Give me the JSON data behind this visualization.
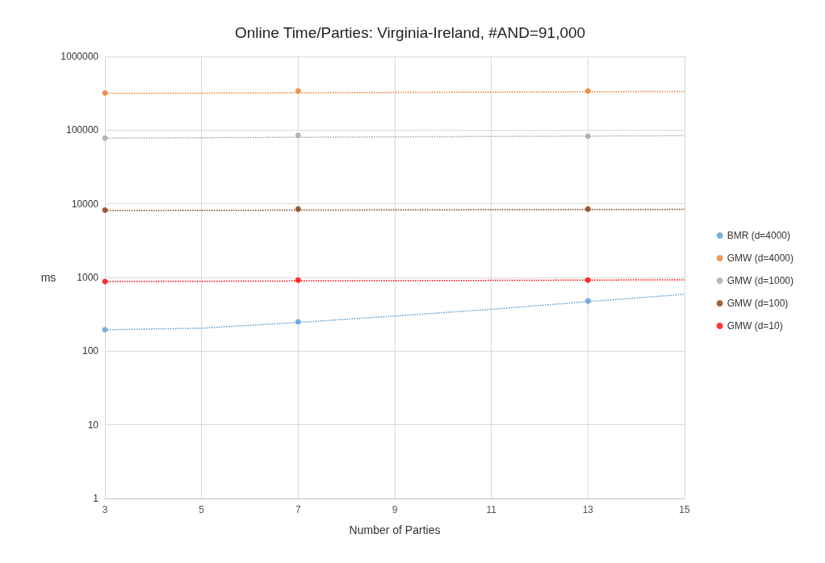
{
  "chart_data": {
    "type": "scatter",
    "title": "Online Time/Parties: Virginia-Ireland, #AND=91,000",
    "xlabel": "Number of Parties",
    "ylabel": "ms",
    "log": "y",
    "grid": true,
    "legend": "right",
    "xlim": [
      3,
      15
    ],
    "xticks": [
      3,
      5,
      7,
      9,
      11,
      13,
      15
    ],
    "ylim": [
      1,
      1000000
    ],
    "yticks": [
      1,
      10,
      100,
      1000,
      10000,
      100000,
      1000000
    ],
    "series": [
      {
        "name": "BMR (d=4000)",
        "marker": "circle",
        "color": "#5b9bd5",
        "x": [
          3,
          7,
          13
        ],
        "values": [
          195,
          250,
          480
        ]
      },
      {
        "name": "GMW (d=4000)",
        "marker": "circle",
        "color": "#ed7d31",
        "x": [
          3,
          7,
          13
        ],
        "values": [
          320000,
          340000,
          340000
        ]
      },
      {
        "name": "GMW (d=1000)",
        "marker": "circle",
        "color": "#a5a5a5",
        "x": [
          3,
          7,
          13
        ],
        "values": [
          78000,
          85000,
          83000
        ]
      },
      {
        "name": "GMW (d=100)",
        "marker": "circle",
        "color": "#843c0c",
        "x": [
          3,
          7,
          13
        ],
        "values": [
          8200,
          8500,
          8500
        ]
      },
      {
        "name": "GMW (d=10)",
        "marker": "circle",
        "color": "#ff0000",
        "x": [
          3,
          7,
          13
        ],
        "values": [
          880,
          920,
          920
        ]
      },
      {
        "type": "line",
        "marker": "none",
        "line_style": "dotted",
        "color": "#5b9bd5",
        "x": [
          3,
          5,
          7,
          9,
          11,
          13,
          15
        ],
        "values": [
          195,
          205,
          245,
          300,
          370,
          470,
          590
        ]
      },
      {
        "type": "line",
        "marker": "none",
        "line_style": "dotted",
        "color": "#ed7d31",
        "x": [
          3,
          15
        ],
        "values": [
          315000,
          335000
        ]
      },
      {
        "type": "line",
        "marker": "none",
        "line_style": "dotted",
        "color": "#a5a5a5",
        "x": [
          3,
          15
        ],
        "values": [
          78000,
          84000
        ]
      },
      {
        "type": "line",
        "marker": "none",
        "line_style": "dotted",
        "color": "#843c0c",
        "x": [
          3,
          15
        ],
        "values": [
          8100,
          8400
        ]
      },
      {
        "type": "line",
        "marker": "none",
        "line_style": "dotted",
        "color": "#ff0000",
        "x": [
          3,
          15
        ],
        "values": [
          880,
          930
        ]
      }
    ]
  }
}
